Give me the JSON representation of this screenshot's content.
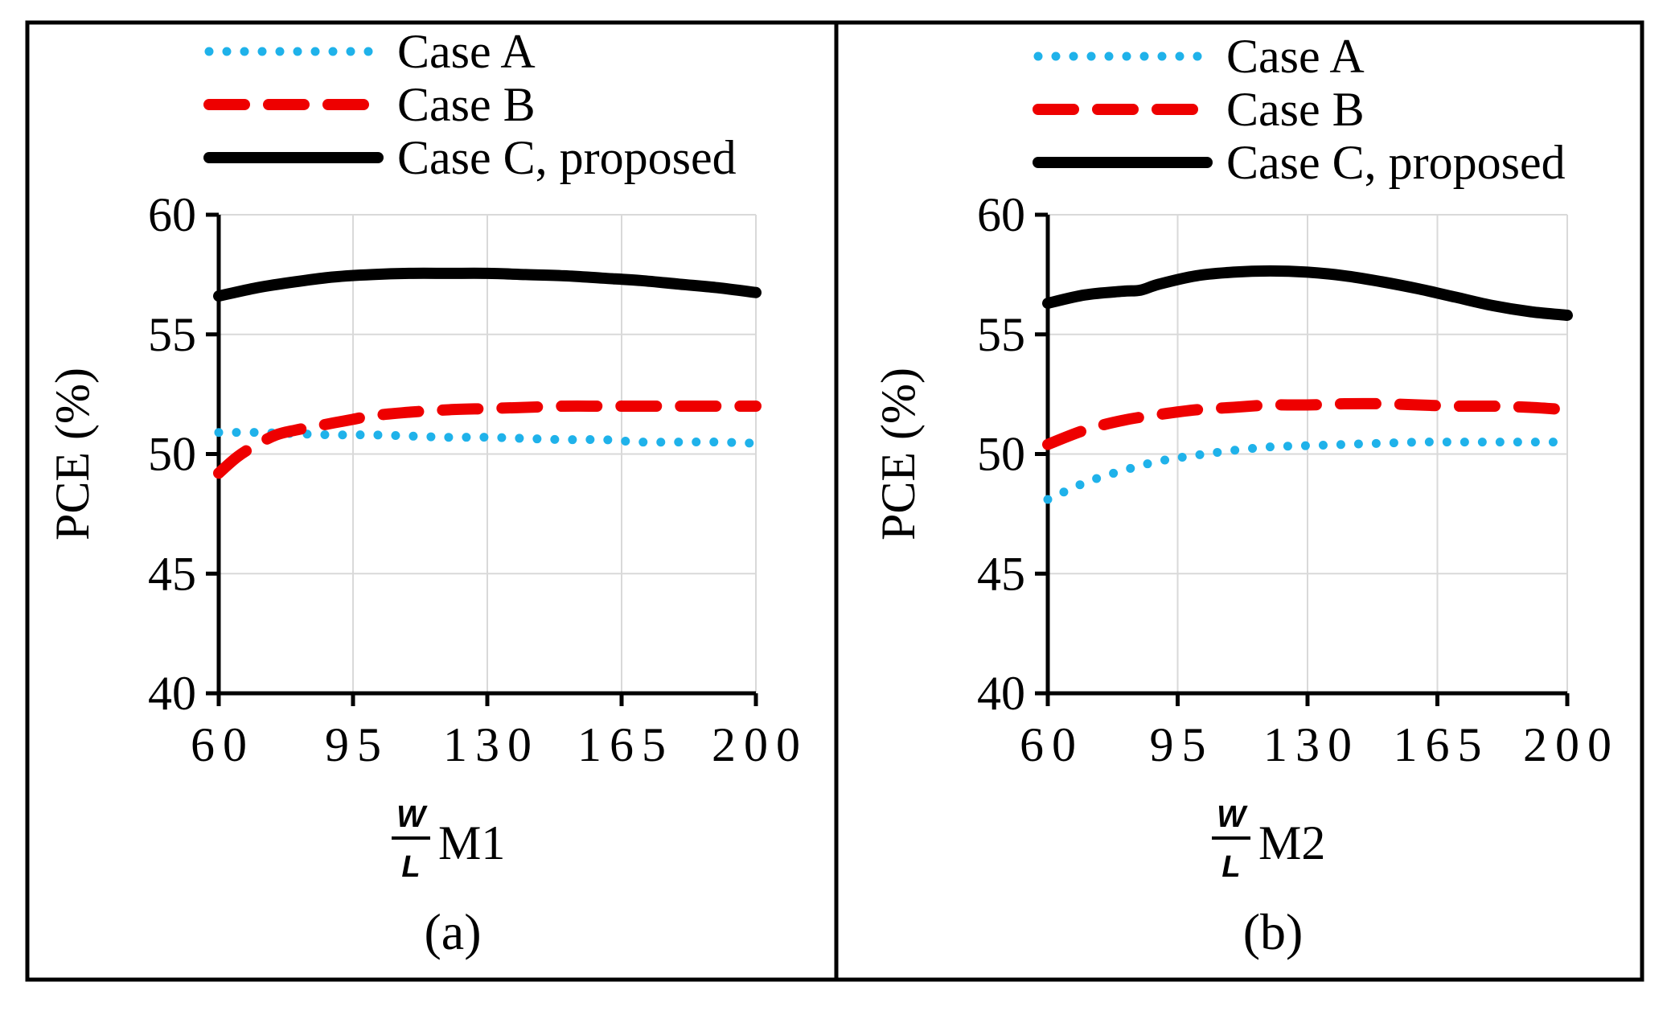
{
  "colors": {
    "case_a": "#1fb2ea",
    "case_b": "#ee0000",
    "case_c": "#000000",
    "grid": "#d9d9d9"
  },
  "chart_data": [
    {
      "type": "line",
      "caption": "(a)",
      "xlabel": {
        "numerator": "W",
        "denominator": "L",
        "suffix": "M1"
      },
      "ylabel": "PCE (%)",
      "xlim": [
        60,
        200
      ],
      "ylim": [
        40,
        60
      ],
      "xticks": [
        "60",
        "95",
        "130",
        "165",
        "200"
      ],
      "yticks": [
        "40",
        "45",
        "50",
        "55",
        "60"
      ],
      "grid": true,
      "legend": {
        "placement": "top",
        "entries": [
          "Case A",
          "Case B",
          "Case C, proposed"
        ]
      },
      "series": [
        {
          "name": "Case A",
          "style": "dotted",
          "x": [
            60,
            70,
            80,
            90,
            100,
            110,
            120,
            130,
            140,
            150,
            160,
            170,
            180,
            190,
            200
          ],
          "y": [
            50.9,
            50.9,
            50.85,
            50.8,
            50.8,
            50.75,
            50.7,
            50.7,
            50.65,
            50.6,
            50.6,
            50.5,
            50.5,
            50.5,
            50.45
          ]
        },
        {
          "name": "Case B",
          "style": "dashed",
          "x": [
            60,
            65,
            70,
            75,
            80,
            85,
            90,
            95,
            100,
            110,
            120,
            130,
            140,
            150,
            160,
            170,
            180,
            190,
            200
          ],
          "y": [
            49.2,
            49.9,
            50.4,
            50.8,
            51.0,
            51.15,
            51.3,
            51.45,
            51.6,
            51.75,
            51.85,
            51.9,
            51.95,
            52.0,
            52.0,
            52.0,
            52.0,
            52.0,
            52.0
          ]
        },
        {
          "name": "Case C, proposed",
          "style": "solid",
          "x": [
            60,
            70,
            80,
            90,
            100,
            110,
            120,
            130,
            140,
            150,
            160,
            170,
            180,
            190,
            200
          ],
          "y": [
            56.6,
            56.95,
            57.2,
            57.4,
            57.5,
            57.55,
            57.55,
            57.55,
            57.5,
            57.45,
            57.35,
            57.25,
            57.1,
            56.95,
            56.75
          ]
        }
      ]
    },
    {
      "type": "line",
      "caption": "(b)",
      "xlabel": {
        "numerator": "W",
        "denominator": "L",
        "suffix": "M2"
      },
      "ylabel": "PCE (%)",
      "xlim": [
        60,
        200
      ],
      "ylim": [
        40,
        60
      ],
      "xticks": [
        "60",
        "95",
        "130",
        "165",
        "200"
      ],
      "yticks": [
        "40",
        "45",
        "50",
        "55",
        "60"
      ],
      "grid": true,
      "legend": {
        "placement": "top",
        "entries": [
          "Case A",
          "Case B",
          "Case C, proposed"
        ]
      },
      "series": [
        {
          "name": "Case A",
          "style": "dotted",
          "x": [
            60,
            70,
            80,
            90,
            100,
            110,
            120,
            130,
            140,
            150,
            160,
            170,
            180,
            190,
            200
          ],
          "y": [
            48.1,
            48.8,
            49.3,
            49.7,
            49.95,
            50.15,
            50.3,
            50.35,
            50.4,
            50.45,
            50.5,
            50.5,
            50.5,
            50.5,
            50.5
          ]
        },
        {
          "name": "Case B",
          "style": "dashed",
          "x": [
            60,
            70,
            80,
            90,
            100,
            110,
            120,
            130,
            140,
            150,
            160,
            170,
            180,
            190,
            200
          ],
          "y": [
            50.4,
            51.0,
            51.4,
            51.65,
            51.85,
            51.95,
            52.05,
            52.05,
            52.1,
            52.1,
            52.05,
            52.0,
            52.0,
            51.95,
            51.85
          ]
        },
        {
          "name": "Case C, proposed",
          "style": "solid",
          "x": [
            60,
            70,
            80,
            85,
            90,
            100,
            110,
            120,
            130,
            140,
            150,
            160,
            170,
            180,
            190,
            200
          ],
          "y": [
            56.3,
            56.65,
            56.8,
            56.85,
            57.1,
            57.45,
            57.6,
            57.65,
            57.6,
            57.45,
            57.2,
            56.9,
            56.55,
            56.2,
            55.95,
            55.8
          ]
        }
      ]
    }
  ]
}
